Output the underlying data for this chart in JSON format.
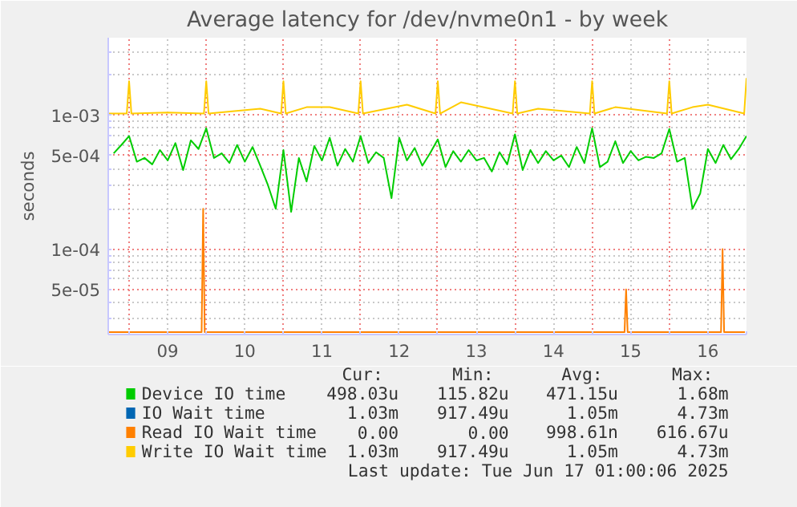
{
  "chart_data": {
    "type": "line",
    "title": "Average latency for /dev/nvme0n1 - by week",
    "ylabel": "seconds",
    "log": "y",
    "grid": true,
    "legend": "bottom",
    "line_style": "solid",
    "marker": "none",
    "xlim": [
      8.73,
      17.0
    ],
    "ylim": [
      2.3e-05,
      0.0038
    ],
    "xticks": [
      {
        "value": 9,
        "label": null
      },
      {
        "value": 9.5,
        "label": "09"
      },
      {
        "value": 10,
        "label": null
      },
      {
        "value": 10.5,
        "label": "10"
      },
      {
        "value": 11,
        "label": null
      },
      {
        "value": 11.5,
        "label": "11"
      },
      {
        "value": 12,
        "label": null
      },
      {
        "value": 12.5,
        "label": "12"
      },
      {
        "value": 13,
        "label": null
      },
      {
        "value": 13.5,
        "label": "13"
      },
      {
        "value": 14,
        "label": null
      },
      {
        "value": 14.5,
        "label": "14"
      },
      {
        "value": 15,
        "label": null
      },
      {
        "value": 15.5,
        "label": "15"
      },
      {
        "value": 16,
        "label": null
      },
      {
        "value": 16.5,
        "label": "16"
      },
      {
        "value": 17,
        "label": null
      }
    ],
    "yticks": [
      {
        "value": 3e-05,
        "label": null
      },
      {
        "value": 4e-05,
        "label": null
      },
      {
        "value": 5e-05,
        "label": "5e-05"
      },
      {
        "value": 6e-05,
        "label": null
      },
      {
        "value": 7e-05,
        "label": null
      },
      {
        "value": 8e-05,
        "label": null
      },
      {
        "value": 9e-05,
        "label": null
      },
      {
        "value": 0.0001,
        "label": "1e-04"
      },
      {
        "value": 0.0002,
        "label": null
      },
      {
        "value": 0.0003,
        "label": null
      },
      {
        "value": 0.0004,
        "label": null
      },
      {
        "value": 0.0005,
        "label": "5e-04"
      },
      {
        "value": 0.0006,
        "label": null
      },
      {
        "value": 0.0007,
        "label": null
      },
      {
        "value": 0.0008,
        "label": null
      },
      {
        "value": 0.0009,
        "label": null
      },
      {
        "value": 0.001,
        "label": "1e-03"
      },
      {
        "value": 0.002,
        "label": null
      },
      {
        "value": 0.003,
        "label": null
      }
    ],
    "series": [
      {
        "name": "Device IO time",
        "color": "#00cc00",
        "x": [
          8.8,
          8.9,
          9.0,
          9.1,
          9.2,
          9.3,
          9.4,
          9.5,
          9.6,
          9.7,
          9.8,
          9.9,
          10.0,
          10.1,
          10.2,
          10.3,
          10.4,
          10.5,
          10.6,
          10.7,
          10.8,
          10.9,
          11.0,
          11.1,
          11.2,
          11.3,
          11.4,
          11.5,
          11.6,
          11.7,
          11.8,
          11.9,
          12.0,
          12.1,
          12.2,
          12.3,
          12.4,
          12.5,
          12.6,
          12.7,
          12.8,
          12.9,
          13.0,
          13.1,
          13.2,
          13.3,
          13.4,
          13.5,
          13.6,
          13.7,
          13.8,
          13.9,
          14.0,
          14.1,
          14.2,
          14.3,
          14.4,
          14.5,
          14.6,
          14.7,
          14.8,
          14.9,
          15.0,
          15.1,
          15.2,
          15.3,
          15.4,
          15.5,
          15.6,
          15.7,
          15.8,
          15.9,
          16.0,
          16.1,
          16.2,
          16.3,
          16.4,
          16.5,
          16.6,
          16.7,
          16.8,
          16.9,
          17.0
        ],
        "values": [
          0.00052,
          0.0006,
          0.0007,
          0.00045,
          0.00048,
          0.00043,
          0.00055,
          0.00046,
          0.00062,
          0.00039,
          0.00065,
          0.00056,
          0.0008,
          0.00048,
          0.00052,
          0.00044,
          0.0006,
          0.00045,
          0.00058,
          0.00042,
          0.0003,
          0.0002,
          0.00055,
          0.00019,
          0.00048,
          0.00032,
          0.00059,
          0.00046,
          0.00068,
          0.00042,
          0.00056,
          0.00045,
          0.0007,
          0.00044,
          0.00053,
          0.00048,
          0.00024,
          0.00068,
          0.00046,
          0.00057,
          0.00042,
          0.00052,
          0.00066,
          0.00041,
          0.00054,
          0.00045,
          0.00055,
          0.00046,
          0.00048,
          0.00038,
          0.00053,
          0.00043,
          0.00072,
          0.00039,
          0.00055,
          0.00044,
          0.00054,
          0.00046,
          0.0005,
          0.00041,
          0.00058,
          0.00044,
          0.0008,
          0.00041,
          0.00045,
          0.00064,
          0.00044,
          0.00054,
          0.00046,
          0.00049,
          0.00048,
          0.00052,
          0.00079,
          0.00045,
          0.00048,
          0.0002,
          0.00026,
          0.00056,
          0.00044,
          0.0006,
          0.00047,
          0.00056,
          0.0007
        ]
      },
      {
        "name": "IO Wait time",
        "color": "#0066b3"
      },
      {
        "name": "Read IO Wait time",
        "color": "#ff8000",
        "x": [
          8.73,
          9.94,
          9.96,
          9.98,
          15.42,
          15.44,
          15.46,
          16.67,
          16.69,
          16.71,
          16.98
        ],
        "values": [
          2.4e-05,
          2.4e-05,
          0.0002,
          2.4e-05,
          2.4e-05,
          5e-05,
          2.4e-05,
          2.4e-05,
          0.0001,
          2.4e-05,
          2.4e-05
        ]
      },
      {
        "name": "Write IO Wait time",
        "color": "#ffcc00",
        "x": [
          8.73,
          8.97,
          9.0,
          9.03,
          9.5,
          9.97,
          10.0,
          10.03,
          10.7,
          10.97,
          11.0,
          11.03,
          11.3,
          11.6,
          11.97,
          12.0,
          12.03,
          12.6,
          12.97,
          13.0,
          13.03,
          13.3,
          13.97,
          14.0,
          14.03,
          14.3,
          14.97,
          15.0,
          15.03,
          15.3,
          15.97,
          16.0,
          16.03,
          16.3,
          16.5,
          16.97,
          17.0
        ],
        "values": [
          0.00103,
          0.00103,
          0.0018,
          0.00103,
          0.00105,
          0.00103,
          0.0018,
          0.00103,
          0.00112,
          0.00103,
          0.0018,
          0.00103,
          0.00115,
          0.00115,
          0.00103,
          0.0018,
          0.00103,
          0.0012,
          0.00103,
          0.0018,
          0.00103,
          0.00125,
          0.00103,
          0.0018,
          0.00103,
          0.00112,
          0.00103,
          0.0018,
          0.00103,
          0.00115,
          0.00103,
          0.0018,
          0.00103,
          0.00115,
          0.0012,
          0.00103,
          0.0019
        ]
      }
    ],
    "annotations": [
      "Cur:",
      "Min:",
      "Avg:",
      "Max:",
      "498.03u",
      "115.82u",
      "471.15u",
      "1.68m",
      "1.03m",
      "917.49u",
      "1.05m",
      "4.73m",
      "0.00",
      "0.00",
      "998.61n",
      "616.67u",
      "1.03m",
      "917.49u",
      "1.05m",
      "4.73m",
      "Last update: Tue Jun 17 01:00:06 2025"
    ]
  }
}
